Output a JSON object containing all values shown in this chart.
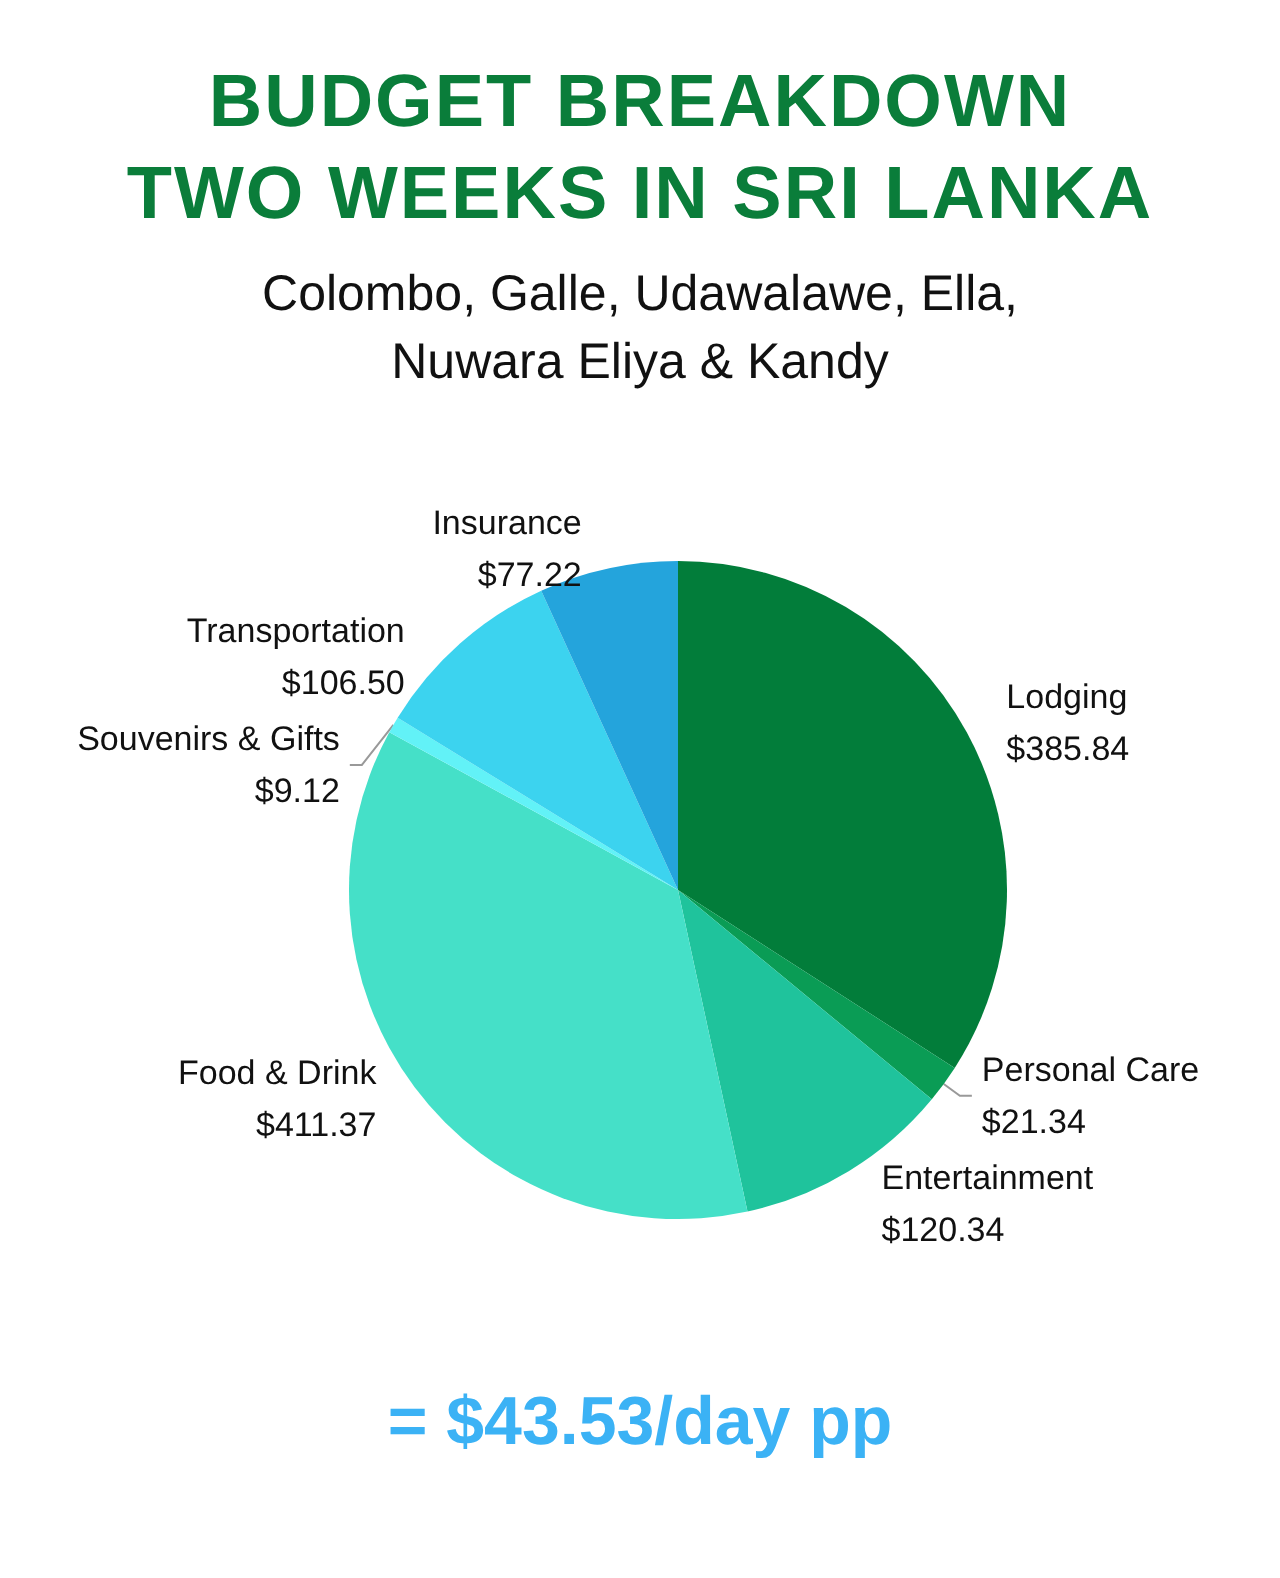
{
  "chart_data": {
    "type": "pie",
    "title": "BUDGET BREAKDOWN\nTWO WEEKS IN SRI LANKA",
    "subtitle": "Colombo, Galle, Udawalawe, Ella,\nNuwara Eliya & Kandy",
    "categories": [
      "Lodging",
      "Personal Care",
      "Entertainment",
      "Food & Drink",
      "Souvenirs & Gifts",
      "Transportation",
      "Insurance"
    ],
    "values": [
      385.84,
      21.34,
      120.34,
      411.37,
      9.12,
      106.5,
      77.22
    ],
    "value_labels": [
      "$385.84",
      "$21.34",
      "$120.34",
      "$411.37",
      "$9.12",
      "$106.50",
      "$77.22"
    ],
    "colors": [
      "#027d3a",
      "#0a9c55",
      "#1fc39c",
      "#45e0c8",
      "#62f2f7",
      "#3cd3ef",
      "#24a4dc"
    ],
    "annotations": [
      "= $43.53/day pp"
    ]
  }
}
